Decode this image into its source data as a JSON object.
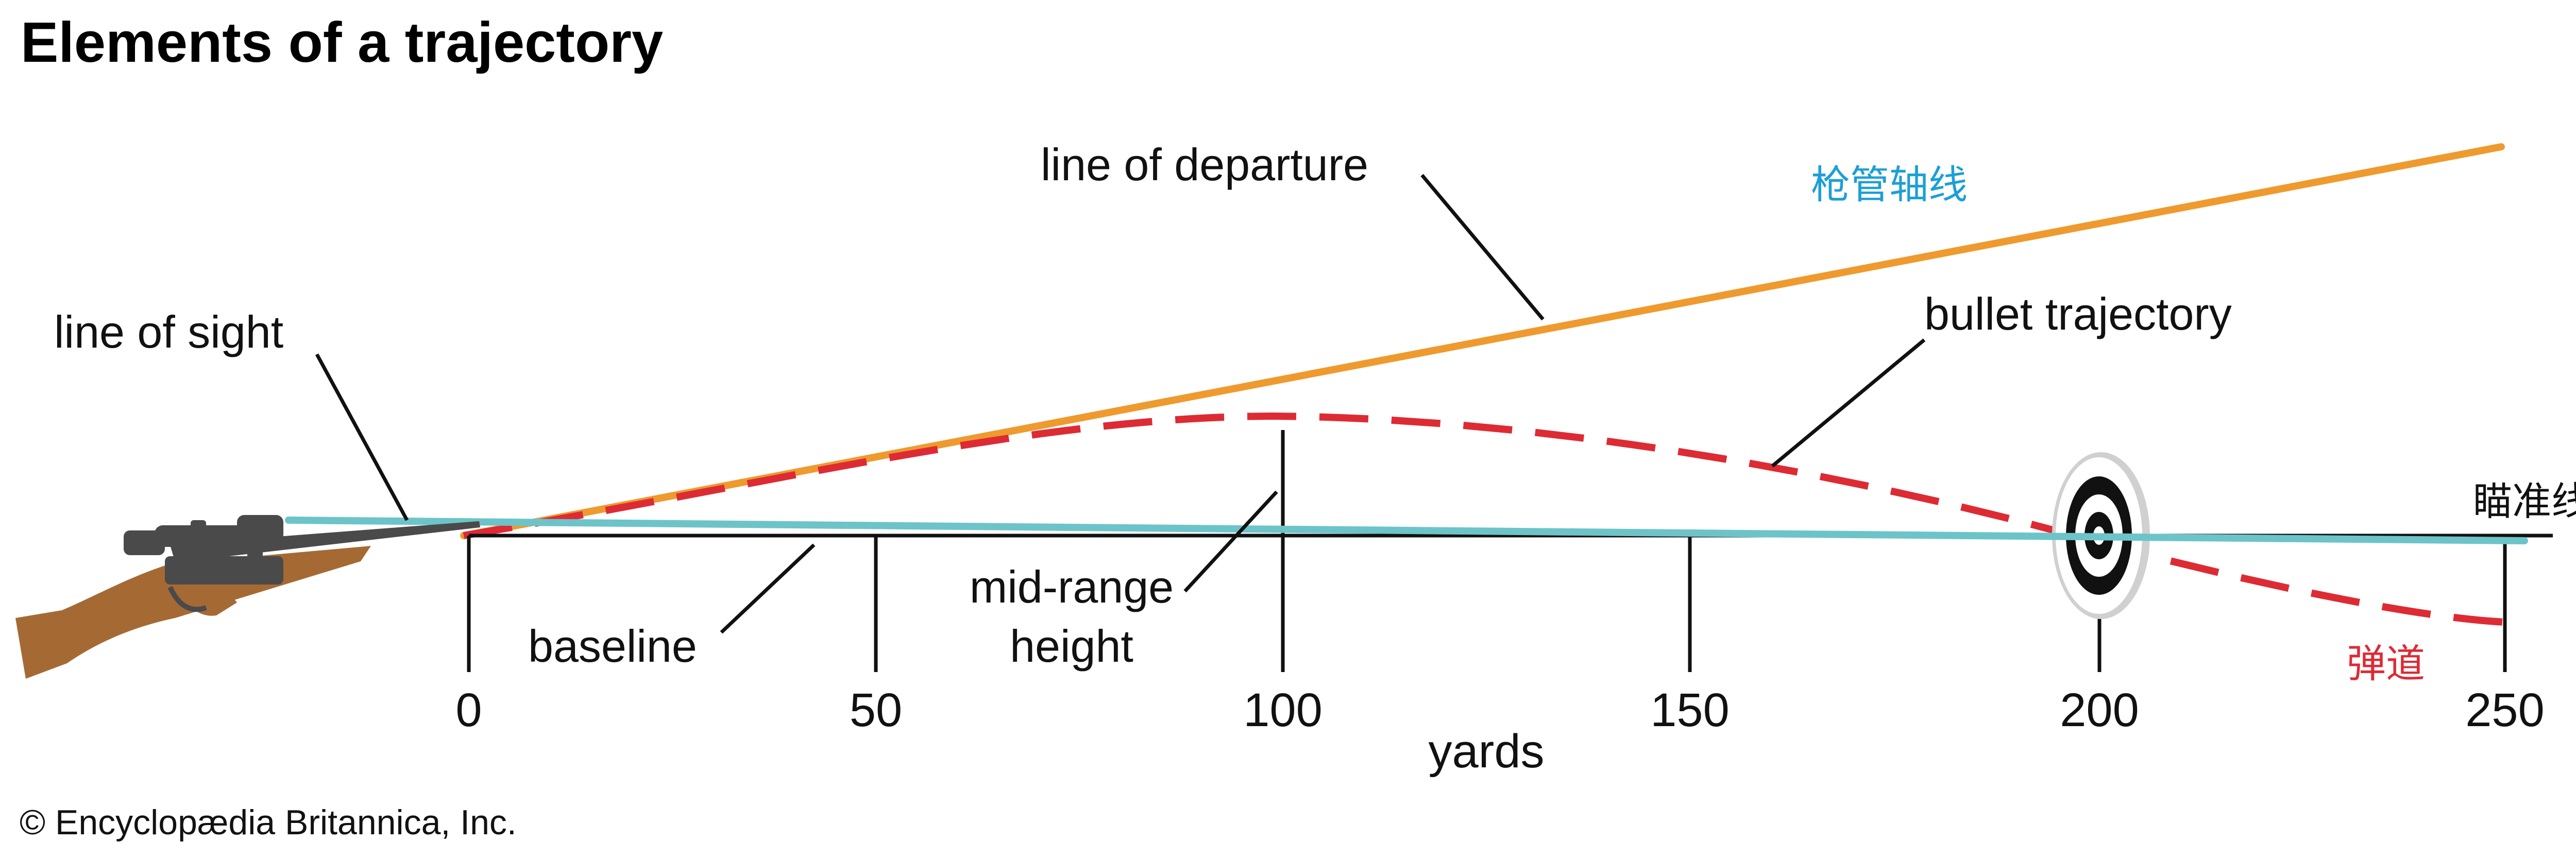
{
  "title": "Elements of a trajectory",
  "credit": "© Encyclopædia Britannica, Inc.",
  "x_axis": {
    "label": "yards",
    "ticks": [
      "0",
      "50",
      "100",
      "150",
      "200",
      "250"
    ]
  },
  "labels": {
    "line_of_departure": "line of departure",
    "line_of_sight": "line of sight",
    "bullet_trajectory": "bullet trajectory",
    "baseline": "baseline",
    "mid_range_1": "mid-range",
    "mid_range_2": "height"
  },
  "zh_labels": {
    "barrel_axis": "枪管轴线",
    "aim_line": "瞄准线",
    "trajectory": "弹道"
  },
  "colors": {
    "departure": "#ef9a2e",
    "sight": "#6cc4c9",
    "trajectory": "#dd2b34",
    "barrel_axis_text": "#1c9fd6",
    "trajectory_text": "#dd2b34",
    "rifle_stock": "#a56a34",
    "rifle_metal": "#4a4a4a",
    "axis": "#111111"
  }
}
